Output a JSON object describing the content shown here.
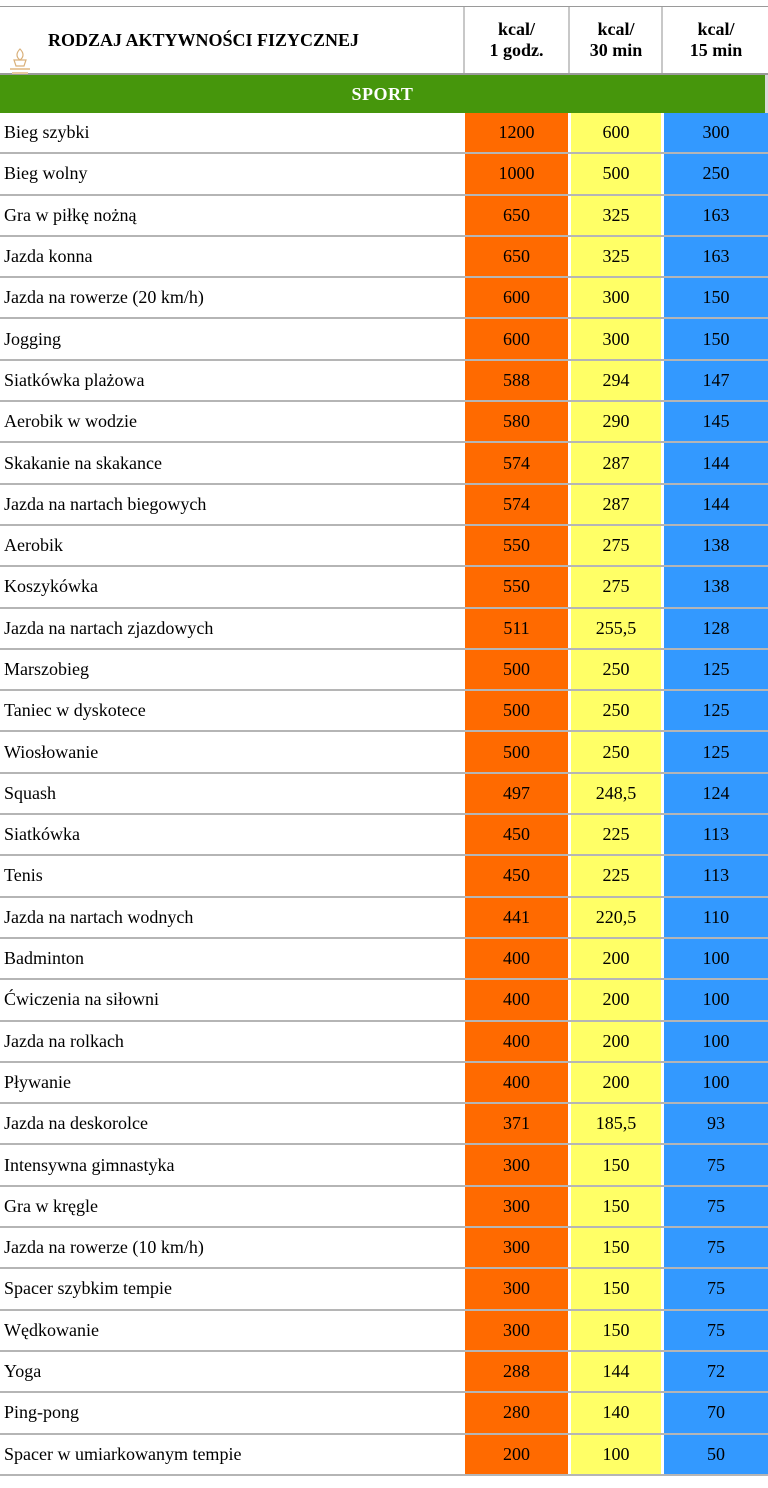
{
  "header": {
    "activity": "RODZAJ AKTYWNOŚCI FIZYCZNEJ",
    "col_hour": "kcal/\n1 godz.",
    "col_30": "kcal/\n30 min",
    "col_15": "kcal/\n15 min"
  },
  "section": "SPORT",
  "colors": {
    "hour": "#ff6a00",
    "half": "#ffff66",
    "quarter": "#3399ff",
    "section": "#46960c"
  },
  "rows": [
    {
      "name": "Bieg szybki",
      "h": "1200",
      "m30": "600",
      "m15": "300"
    },
    {
      "name": "Bieg wolny",
      "h": "1000",
      "m30": "500",
      "m15": "250"
    },
    {
      "name": "Gra w piłkę nożną",
      "h": "650",
      "m30": "325",
      "m15": "163"
    },
    {
      "name": "Jazda konna",
      "h": "650",
      "m30": "325",
      "m15": "163"
    },
    {
      "name": "Jazda na rowerze (20 km/h)",
      "h": "600",
      "m30": "300",
      "m15": "150"
    },
    {
      "name": "Jogging",
      "h": "600",
      "m30": "300",
      "m15": "150"
    },
    {
      "name": "Siatkówka plażowa",
      "h": "588",
      "m30": "294",
      "m15": "147"
    },
    {
      "name": "Aerobik w wodzie",
      "h": "580",
      "m30": "290",
      "m15": "145"
    },
    {
      "name": "Skakanie na skakance",
      "h": "574",
      "m30": "287",
      "m15": "144"
    },
    {
      "name": "Jazda na nartach biegowych",
      "h": "574",
      "m30": "287",
      "m15": "144"
    },
    {
      "name": "Aerobik",
      "h": "550",
      "m30": "275",
      "m15": "138"
    },
    {
      "name": "Koszykówka",
      "h": "550",
      "m30": "275",
      "m15": "138"
    },
    {
      "name": "Jazda na nartach zjazdowych",
      "h": "511",
      "m30": "255,5",
      "m15": "128"
    },
    {
      "name": "Marszobieg",
      "h": "500",
      "m30": "250",
      "m15": "125"
    },
    {
      "name": "Taniec w dyskotece",
      "h": "500",
      "m30": "250",
      "m15": "125"
    },
    {
      "name": "Wiosłowanie",
      "h": "500",
      "m30": "250",
      "m15": "125"
    },
    {
      "name": "Squash",
      "h": "497",
      "m30": "248,5",
      "m15": "124"
    },
    {
      "name": "Siatkówka",
      "h": "450",
      "m30": "225",
      "m15": "113"
    },
    {
      "name": "Tenis",
      "h": "450",
      "m30": "225",
      "m15": "113"
    },
    {
      "name": "Jazda na nartach wodnych",
      "h": "441",
      "m30": "220,5",
      "m15": "110"
    },
    {
      "name": "Badminton",
      "h": "400",
      "m30": "200",
      "m15": "100"
    },
    {
      "name": "Ćwiczenia na siłowni",
      "h": "400",
      "m30": "200",
      "m15": "100"
    },
    {
      "name": "Jazda na rolkach",
      "h": "400",
      "m30": "200",
      "m15": "100"
    },
    {
      "name": "Pływanie",
      "h": "400",
      "m30": "200",
      "m15": "100"
    },
    {
      "name": "Jazda na deskorolce",
      "h": "371",
      "m30": "185,5",
      "m15": "93"
    },
    {
      "name": "Intensywna gimnastyka",
      "h": "300",
      "m30": "150",
      "m15": "75"
    },
    {
      "name": "Gra w kręgle",
      "h": "300",
      "m30": "150",
      "m15": "75"
    },
    {
      "name": "Jazda na rowerze (10 km/h)",
      "h": "300",
      "m30": "150",
      "m15": "75"
    },
    {
      "name": "Spacer szybkim tempie",
      "h": "300",
      "m30": "150",
      "m15": "75"
    },
    {
      "name": "Wędkowanie",
      "h": "300",
      "m30": "150",
      "m15": "75"
    },
    {
      "name": "Yoga",
      "h": "288",
      "m30": "144",
      "m15": "72"
    },
    {
      "name": "Ping-pong",
      "h": "280",
      "m30": "140",
      "m15": "70"
    },
    {
      "name": "Spacer w umiarkowanym tempie",
      "h": "200",
      "m30": "100",
      "m15": "50"
    }
  ]
}
